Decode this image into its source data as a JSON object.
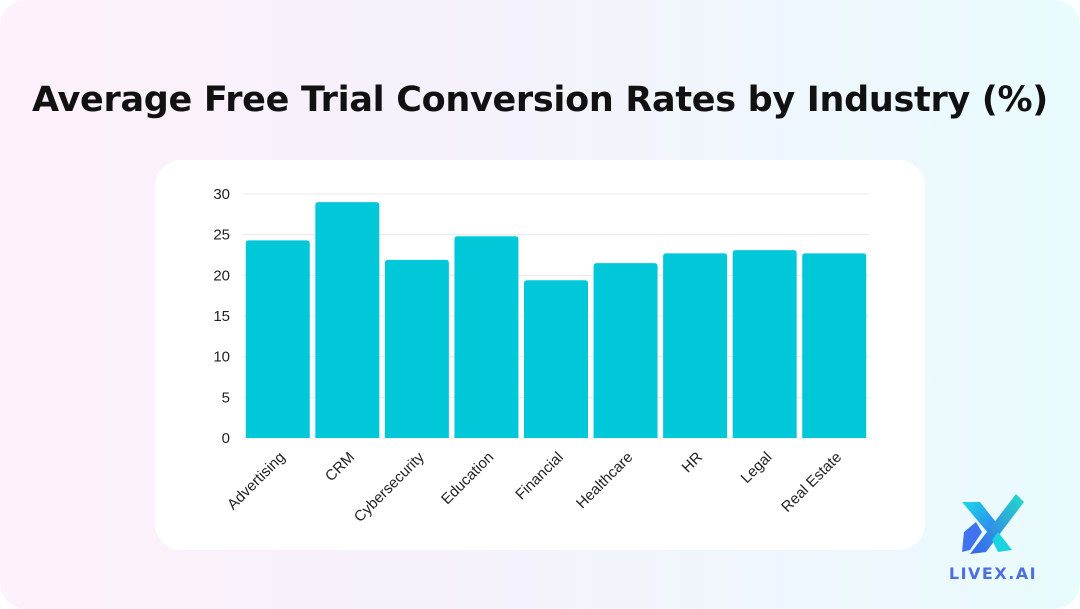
{
  "title": "Average Free Trial Conversion Rates by Industry (%)",
  "brand": {
    "name": "LIVEX.AI",
    "icon": "livex-logo-icon",
    "colors": [
      "#3b6cf0",
      "#17d6e6"
    ]
  },
  "colors": {
    "bar": "#00c8d9",
    "grid": "#e8e8e8",
    "tick_text": "#222222",
    "title": "#111111"
  },
  "chart_data": {
    "type": "bar",
    "title": "Average Free Trial Conversion Rates by Industry (%)",
    "xlabel": "",
    "ylabel": "",
    "categories": [
      "Advertising",
      "CRM",
      "Cybersecurity",
      "Education",
      "Financial",
      "Healthcare",
      "HR",
      "Legal",
      "Real Estate"
    ],
    "values": [
      24.3,
      29.0,
      21.9,
      24.8,
      19.4,
      21.5,
      22.7,
      23.1,
      22.7
    ],
    "ylim": [
      0,
      30
    ],
    "yticks": [
      0,
      5,
      10,
      15,
      20,
      25,
      30
    ],
    "grid": true,
    "legend": "none"
  }
}
